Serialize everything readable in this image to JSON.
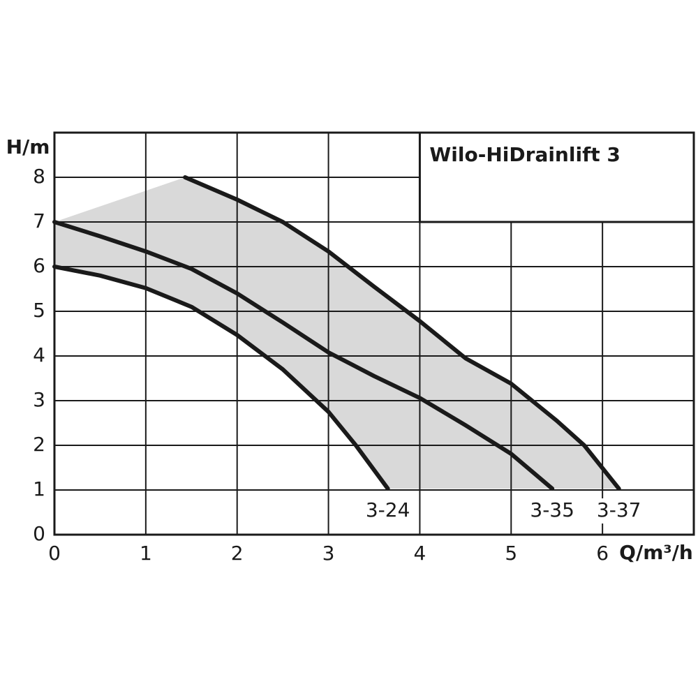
{
  "chart_data": {
    "type": "line",
    "title": "Wilo-HiDrainlift 3",
    "x_label": "Q/m³/h",
    "y_label": "H/m",
    "xlim": [
      0,
      7
    ],
    "ylim": [
      0,
      9
    ],
    "xticks": [
      0,
      1,
      2,
      3,
      4,
      5,
      6
    ],
    "yticks": [
      0,
      1,
      2,
      3,
      4,
      5,
      6,
      7,
      8
    ],
    "grid": true,
    "area_color": "#d9d9d9",
    "series": [
      {
        "name": "3-24",
        "color": "#1a1a1a",
        "x": [
          0,
          0.5,
          1,
          1.5,
          2,
          2.5,
          3,
          3.3,
          3.65
        ],
        "values": [
          6,
          5.8,
          5.52,
          5.1,
          4.47,
          3.7,
          2.75,
          2.0,
          1.03
        ]
      },
      {
        "name": "3-35",
        "color": "#1a1a1a",
        "x": [
          0,
          0.5,
          1,
          1.5,
          2,
          2.5,
          3,
          3.5,
          4,
          4.5,
          5,
          5.45
        ],
        "values": [
          7,
          6.68,
          6.34,
          5.95,
          5.4,
          4.75,
          4.08,
          3.55,
          3.06,
          2.45,
          1.81,
          1.03
        ]
      },
      {
        "name": "3-37",
        "color": "#1a1a1a",
        "x": [
          1.43,
          2,
          2.5,
          3,
          3.5,
          4,
          4.5,
          5,
          5.5,
          5.8,
          6.18
        ],
        "values": [
          8,
          7.5,
          7.0,
          6.34,
          5.55,
          4.78,
          3.95,
          3.38,
          2.55,
          2.0,
          1.03
        ]
      }
    ]
  }
}
